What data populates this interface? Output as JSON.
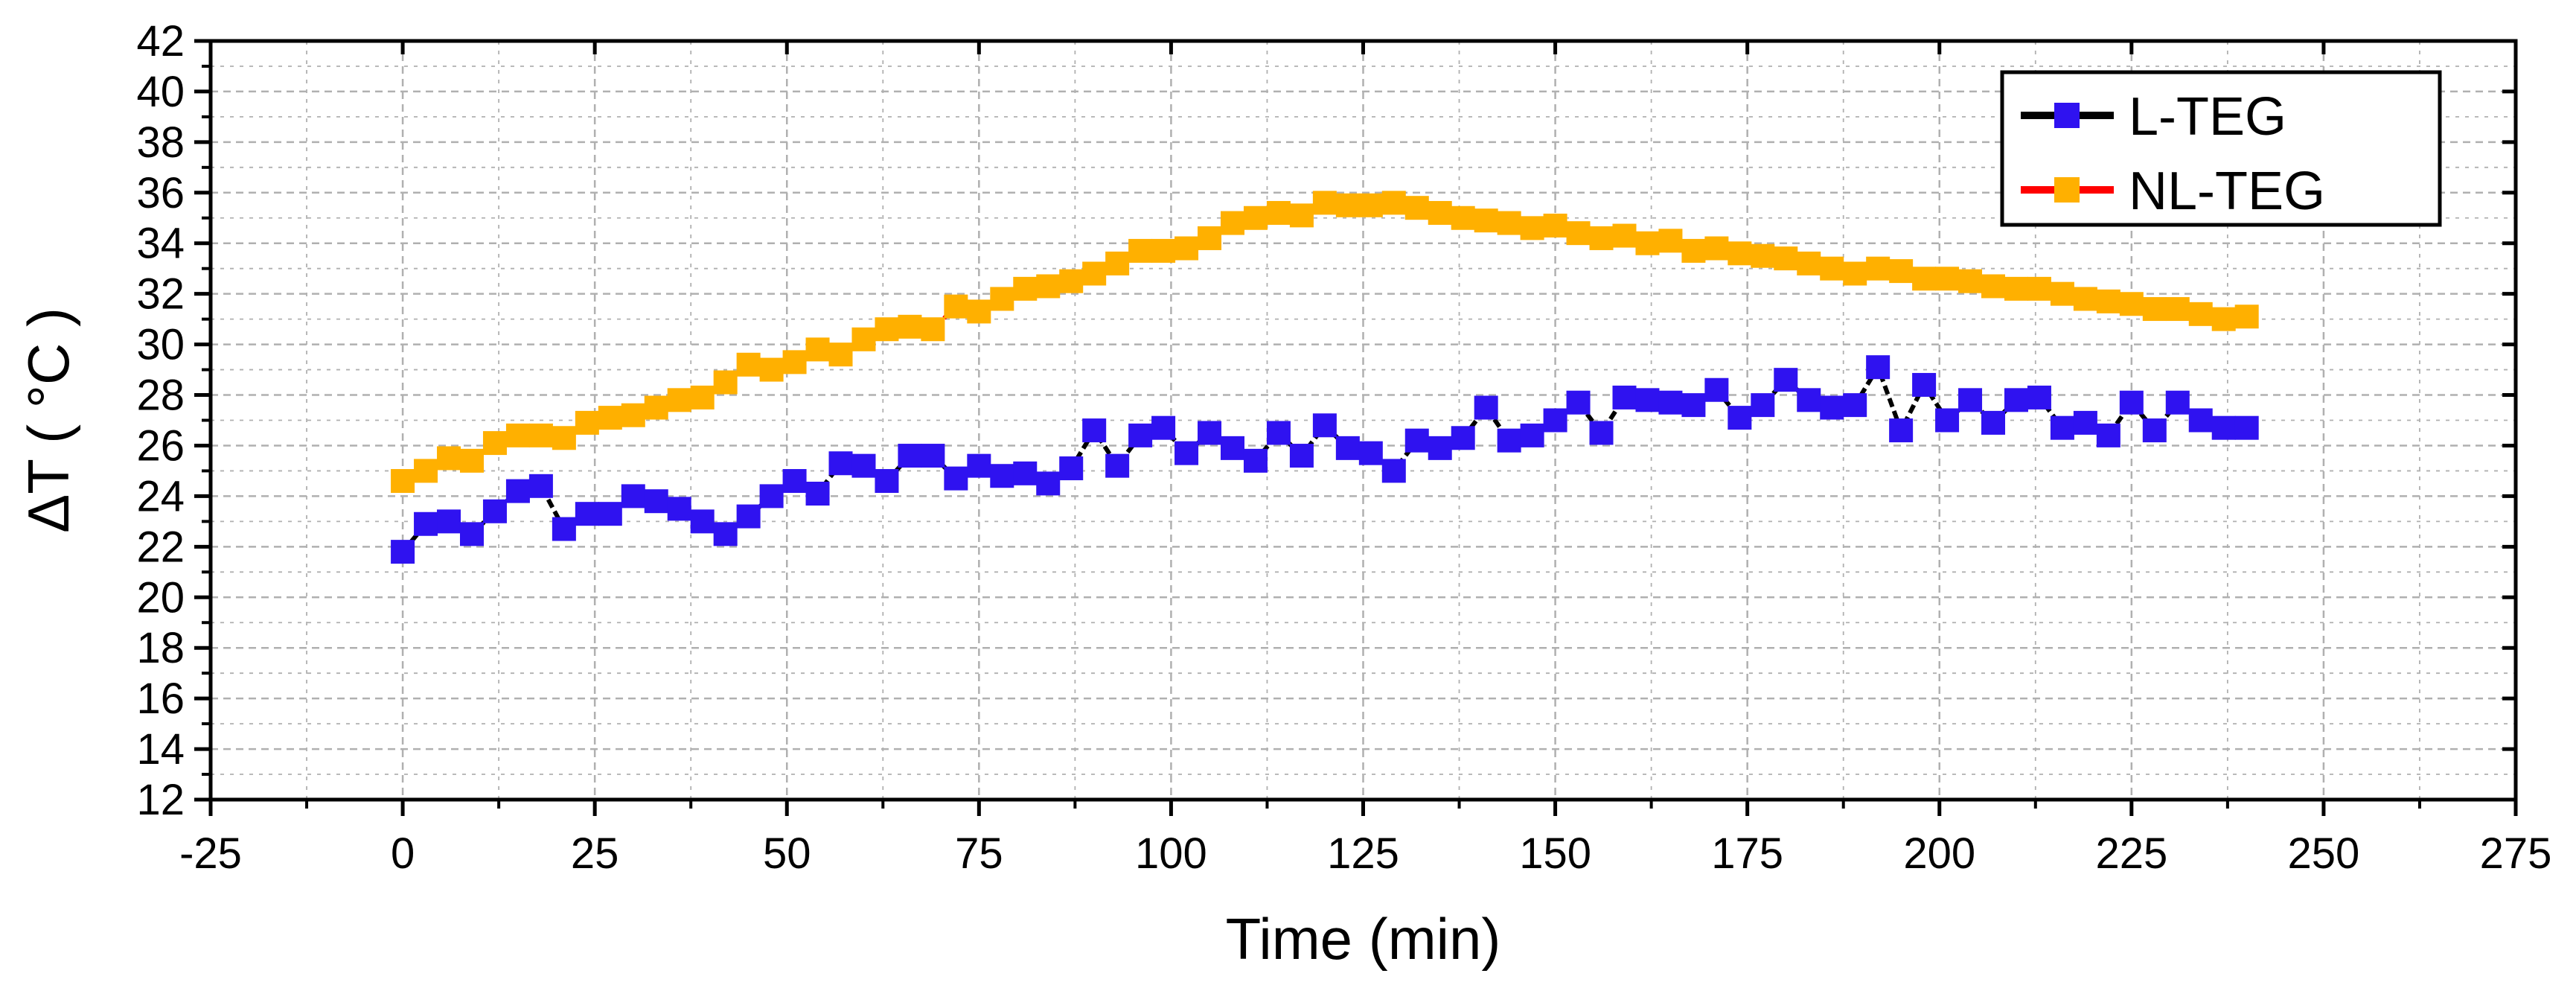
{
  "chart_data": {
    "type": "line",
    "xlabel": "Time (min)",
    "ylabel": "ΔT ( °C )",
    "xlim": [
      -25,
      275
    ],
    "ylim": [
      12,
      42
    ],
    "xticks": [
      -25,
      0,
      25,
      50,
      75,
      100,
      125,
      150,
      175,
      200,
      225,
      250,
      275
    ],
    "yticks": [
      12,
      14,
      16,
      18,
      20,
      22,
      24,
      26,
      28,
      30,
      32,
      34,
      36,
      38,
      40,
      42
    ],
    "grid": true,
    "legend_position": "top-right",
    "colors": {
      "L-TEG_line": "#000000",
      "L-TEG_marker": "#2f12f0",
      "NL-TEG_line": "#ff0000",
      "NL-TEG_marker": "#ffb000",
      "grid": "#b0b0b0",
      "axis": "#000000"
    },
    "series": [
      {
        "name": "L-TEG",
        "x": [
          0,
          3,
          6,
          9,
          12,
          15,
          18,
          21,
          24,
          27,
          30,
          33,
          36,
          39,
          42,
          45,
          48,
          51,
          54,
          57,
          60,
          63,
          66,
          69,
          72,
          75,
          78,
          81,
          84,
          87,
          90,
          93,
          96,
          99,
          102,
          105,
          108,
          111,
          114,
          117,
          120,
          123,
          126,
          129,
          132,
          135,
          138,
          141,
          144,
          147,
          150,
          153,
          156,
          159,
          162,
          165,
          168,
          171,
          174,
          177,
          180,
          183,
          186,
          189,
          192,
          195,
          198,
          201,
          204,
          207,
          210,
          213,
          216,
          219,
          222,
          225,
          228,
          231,
          234,
          237,
          240
        ],
        "values": [
          21.8,
          22.9,
          23.0,
          22.5,
          23.4,
          24.2,
          24.4,
          22.7,
          23.3,
          23.3,
          24.0,
          23.8,
          23.5,
          23.0,
          22.5,
          23.2,
          24.0,
          24.6,
          24.1,
          25.3,
          25.2,
          24.6,
          25.6,
          25.6,
          24.7,
          25.2,
          24.8,
          24.9,
          24.5,
          25.1,
          26.6,
          25.2,
          26.4,
          26.7,
          25.7,
          26.5,
          25.9,
          25.4,
          26.5,
          25.6,
          26.8,
          25.9,
          25.7,
          25.0,
          26.2,
          25.9,
          26.3,
          27.5,
          26.2,
          26.4,
          27.0,
          27.7,
          26.5,
          27.9,
          27.8,
          27.7,
          27.6,
          28.2,
          27.1,
          27.6,
          28.6,
          27.8,
          27.5,
          27.6,
          29.1,
          26.6,
          28.4,
          27.0,
          27.8,
          26.9,
          27.8,
          27.9,
          26.7,
          26.9,
          26.4,
          27.7,
          26.6,
          27.7,
          27.0,
          26.7,
          26.7
        ]
      },
      {
        "name": "NL-TEG",
        "x": [
          0,
          3,
          6,
          9,
          12,
          15,
          18,
          21,
          24,
          27,
          30,
          33,
          36,
          39,
          42,
          45,
          48,
          51,
          54,
          57,
          60,
          63,
          66,
          69,
          72,
          75,
          78,
          81,
          84,
          87,
          90,
          93,
          96,
          99,
          102,
          105,
          108,
          111,
          114,
          117,
          120,
          123,
          126,
          129,
          132,
          135,
          138,
          141,
          144,
          147,
          150,
          153,
          156,
          159,
          162,
          165,
          168,
          171,
          174,
          177,
          180,
          183,
          186,
          189,
          192,
          195,
          198,
          201,
          204,
          207,
          210,
          213,
          216,
          219,
          222,
          225,
          228,
          231,
          234,
          237,
          240
        ],
        "values": [
          24.6,
          25.0,
          25.5,
          25.4,
          26.1,
          26.4,
          26.4,
          26.3,
          26.9,
          27.1,
          27.2,
          27.5,
          27.8,
          27.9,
          28.5,
          29.2,
          29.0,
          29.3,
          29.8,
          29.6,
          30.2,
          30.6,
          30.7,
          30.6,
          31.5,
          31.3,
          31.8,
          32.2,
          32.3,
          32.5,
          32.8,
          33.2,
          33.7,
          33.7,
          33.8,
          34.2,
          34.8,
          35.0,
          35.2,
          35.1,
          35.6,
          35.5,
          35.5,
          35.6,
          35.4,
          35.2,
          35.0,
          34.9,
          34.8,
          34.6,
          34.7,
          34.4,
          34.2,
          34.3,
          34.0,
          34.1,
          33.7,
          33.8,
          33.6,
          33.5,
          33.4,
          33.2,
          33.0,
          32.8,
          33.0,
          32.9,
          32.6,
          32.6,
          32.5,
          32.3,
          32.2,
          32.2,
          32.0,
          31.8,
          31.7,
          31.6,
          31.4,
          31.4,
          31.2,
          31.0,
          31.1
        ]
      }
    ]
  }
}
